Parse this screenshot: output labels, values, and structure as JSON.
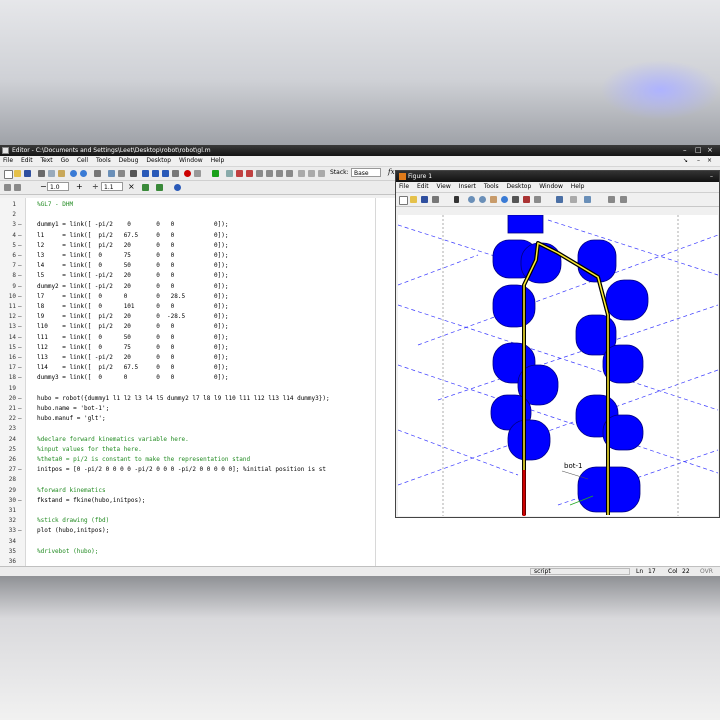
{
  "editor": {
    "title": "Editor - C:\\Documents and Settings\\Leet\\Desktop\\robot\\robot\\gl.m",
    "menu": [
      "File",
      "Edit",
      "Text",
      "Go",
      "Cell",
      "Tools",
      "Debug",
      "Desktop",
      "Window",
      "Help"
    ],
    "toolbar": {
      "stack_label": "Stack:",
      "stack_value": "Base",
      "fx_label": "fx",
      "minus_label": "−",
      "increment_value": "1.0",
      "plus_label": "+",
      "divide_label": "÷",
      "scale_value": "1.1",
      "times_label": "×"
    },
    "lines": [
      {
        "n": "1",
        "dash": "",
        "text": "%GL7 - DHM",
        "kind": "comment"
      },
      {
        "n": "2",
        "dash": "",
        "text": "",
        "kind": "code"
      },
      {
        "n": "3",
        "dash": "–",
        "text": "dummy1 = link([ -pi/2    0       0   0           0]);",
        "kind": "code"
      },
      {
        "n": "4",
        "dash": "–",
        "text": "l1     = link([  pi/2   67.5     0   0           0]);",
        "kind": "code"
      },
      {
        "n": "5",
        "dash": "–",
        "text": "l2     = link([  pi/2   20       0   0           0]);",
        "kind": "code"
      },
      {
        "n": "6",
        "dash": "–",
        "text": "l3     = link([  0      75       0   0           0]);",
        "kind": "code"
      },
      {
        "n": "7",
        "dash": "–",
        "text": "l4     = link([  0      50       0   0           0]);",
        "kind": "code"
      },
      {
        "n": "8",
        "dash": "–",
        "text": "l5     = link([ -pi/2   20       0   0           0]);",
        "kind": "code"
      },
      {
        "n": "9",
        "dash": "–",
        "text": "dummy2 = link([ -pi/2   20       0   0           0]);",
        "kind": "code"
      },
      {
        "n": "10",
        "dash": "–",
        "text": "l7     = link([  0      0        0   28.5        0]);",
        "kind": "code"
      },
      {
        "n": "11",
        "dash": "–",
        "text": "l8     = link([  0      101      0   0           0]);",
        "kind": "code"
      },
      {
        "n": "12",
        "dash": "–",
        "text": "l9     = link([  pi/2   20       0  -28.5        0]);",
        "kind": "code"
      },
      {
        "n": "13",
        "dash": "–",
        "text": "l10    = link([  pi/2   20       0   0           0]);",
        "kind": "code"
      },
      {
        "n": "14",
        "dash": "–",
        "text": "l11    = link([  0      50       0   0           0]);",
        "kind": "code"
      },
      {
        "n": "15",
        "dash": "–",
        "text": "l12    = link([  0      75       0   0           0]);",
        "kind": "code"
      },
      {
        "n": "16",
        "dash": "–",
        "text": "l13    = link([ -pi/2   20       0   0           0]);",
        "kind": "code"
      },
      {
        "n": "17",
        "dash": "–",
        "text": "l14    = link([  pi/2   67.5     0   0           0]);",
        "kind": "code"
      },
      {
        "n": "18",
        "dash": "–",
        "text": "dummy3 = link([  0      0        0   0           0]);",
        "kind": "code"
      },
      {
        "n": "19",
        "dash": "",
        "text": "",
        "kind": "code"
      },
      {
        "n": "20",
        "dash": "–",
        "text": "hubo = robot({dummy1 l1 l2 l3 l4 l5 dummy2 l7 l8 l9 l10 l11 l12 l13 l14 dummy3});",
        "kind": "code"
      },
      {
        "n": "21",
        "dash": "–",
        "text": "hubo.name = 'bot-1';",
        "kind": "code"
      },
      {
        "n": "22",
        "dash": "–",
        "text": "hubo.manuf = 'glt';",
        "kind": "code"
      },
      {
        "n": "23",
        "dash": "",
        "text": "",
        "kind": "code"
      },
      {
        "n": "24",
        "dash": "",
        "text": "%declare forward kinematics variable here.",
        "kind": "comment"
      },
      {
        "n": "25",
        "dash": "",
        "text": "%input values for theta here.",
        "kind": "comment"
      },
      {
        "n": "26",
        "dash": "",
        "text": "%theta0 = pi/2 is constant to make the representation stand",
        "kind": "comment"
      },
      {
        "n": "27",
        "dash": "–",
        "text": "initpos = [0 -pi/2 0 0 0 0 -pi/2 0 0 0 -pi/2 0 0 0 0 0]; %initial position is st",
        "kind": "code"
      },
      {
        "n": "28",
        "dash": "",
        "text": "",
        "kind": "code"
      },
      {
        "n": "29",
        "dash": "",
        "text": "%forward kinematics",
        "kind": "comment"
      },
      {
        "n": "30",
        "dash": "–",
        "text": "fkstand = fkine(hubo,initpos);",
        "kind": "code"
      },
      {
        "n": "31",
        "dash": "",
        "text": "",
        "kind": "code"
      },
      {
        "n": "32",
        "dash": "",
        "text": "%stick drawing (fbd)",
        "kind": "comment"
      },
      {
        "n": "33",
        "dash": "–",
        "text": "plot (hubo,initpos);",
        "kind": "code"
      },
      {
        "n": "34",
        "dash": "",
        "text": "",
        "kind": "code"
      },
      {
        "n": "35",
        "dash": "",
        "text": "%drivebot (hubo);",
        "kind": "comment"
      },
      {
        "n": "36",
        "dash": "",
        "text": "",
        "kind": "code"
      }
    ],
    "status": {
      "mode": "script",
      "ln_label": "Ln",
      "ln": "17",
      "col_label": "Col",
      "col": "22",
      "ovr": "OVR"
    }
  },
  "figure": {
    "title": "Figure 1",
    "menu": [
      "File",
      "Edit",
      "View",
      "Insert",
      "Tools",
      "Desktop",
      "Window",
      "Help"
    ],
    "plot_label": "bot-1"
  },
  "colors": {
    "link_blue": "#0000ff",
    "comment_green": "#228B22",
    "base_red": "#cc0000",
    "stick_yellow": "#ffee33"
  }
}
